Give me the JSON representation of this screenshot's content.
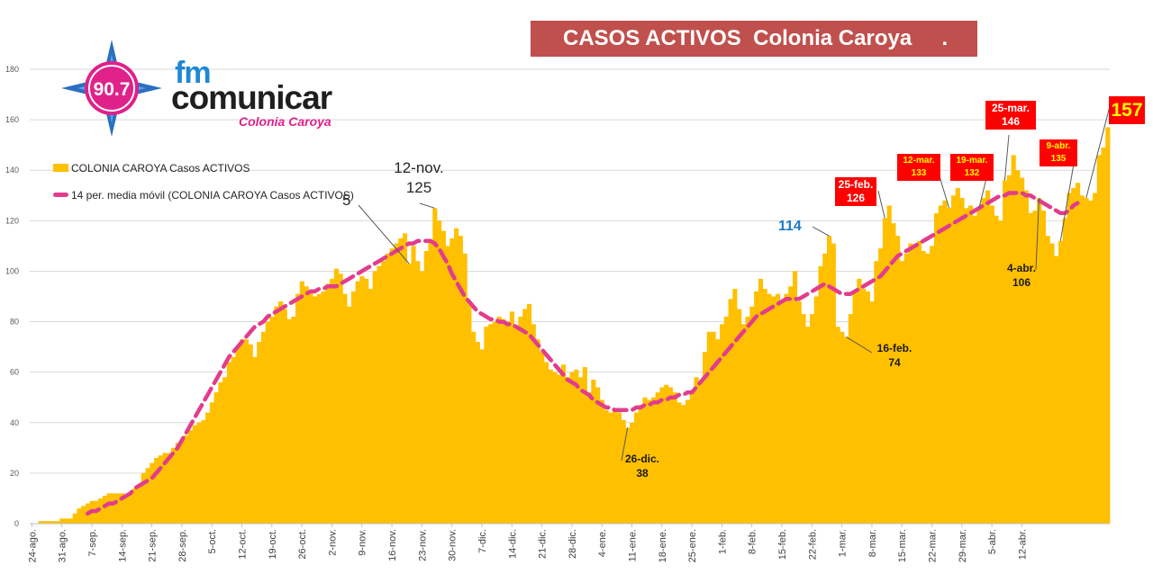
{
  "title": "CASOS ACTIVOS  Colonia Caroya     .",
  "logo": {
    "frequency": "90.7",
    "brand_top": "fm",
    "brand_main": "comunicar",
    "brand_city": "Colonia Caroya"
  },
  "colors": {
    "bars": "#ffc000",
    "moving_average": "#e23c8c",
    "title_bg": "#c0504d",
    "highlight": "#ff0000",
    "highlight_text": "#ffff00",
    "accent_blue": "#1e7bc9"
  },
  "chart_data": {
    "type": "bar",
    "ylim": [
      0,
      180
    ],
    "yticks": [
      0,
      20,
      40,
      60,
      80,
      100,
      120,
      140,
      160,
      180
    ],
    "grid": true,
    "legend_position": "top-left",
    "x_tick_labels": [
      "24-ago.",
      "31-ago.",
      "7-sep.",
      "14-sep.",
      "21-sep.",
      "28-sep.",
      "5-oct.",
      "12-oct.",
      "19-oct.",
      "26-oct.",
      "2-nov.",
      "9-nov.",
      "16-nov.",
      "23-nov.",
      "30-nov.",
      "7-dic.",
      "14-dic.",
      "21-dic.",
      "28-dic.",
      "4-ene.",
      "11-ene.",
      "18-ene.",
      "25-ene.",
      "1-feb.",
      "8-feb.",
      "15-feb.",
      "22-feb.",
      "1-mar.",
      "8-mar.",
      "15-mar.",
      "22-mar.",
      "29-mar.",
      "5-abr.",
      "12-abr."
    ],
    "first_day": "24-ago.",
    "series": [
      {
        "name": "COLONIA CAROYA Casos ACTIVOS",
        "type": "bar",
        "values": [
          0,
          0,
          1,
          1,
          1,
          1,
          1,
          2,
          2,
          2,
          4,
          6,
          7,
          8,
          9,
          9,
          10,
          11,
          12,
          12,
          12,
          12,
          11,
          12,
          14,
          15,
          20,
          22,
          24,
          26,
          27,
          28,
          28,
          30,
          32,
          33,
          35,
          37,
          39,
          40,
          41,
          44,
          48,
          52,
          56,
          58,
          64,
          66,
          70,
          73,
          73,
          71,
          66,
          72,
          76,
          80,
          82,
          86,
          88,
          85,
          81,
          82,
          91,
          96,
          94,
          92,
          90,
          91,
          92,
          95,
          97,
          101,
          99,
          91,
          86,
          92,
          96,
          98,
          97,
          93,
          100,
          102,
          104,
          107,
          109,
          111,
          113,
          115,
          103,
          110,
          104,
          100,
          108,
          112,
          125,
          120,
          116,
          110,
          113,
          117,
          114,
          107,
          88,
          76,
          72,
          69,
          78,
          79,
          80,
          82,
          81,
          80,
          84,
          78,
          82,
          85,
          87,
          79,
          73,
          68,
          64,
          61,
          60,
          59,
          63,
          58,
          60,
          61,
          58,
          62,
          52,
          57,
          54,
          49,
          45,
          44,
          45,
          44,
          41,
          38,
          40,
          44,
          47,
          50,
          49,
          50,
          52,
          54,
          55,
          54,
          52,
          48,
          47,
          49,
          52,
          58,
          56,
          68,
          76,
          76,
          73,
          79,
          82,
          89,
          93,
          85,
          79,
          82,
          86,
          92,
          97,
          93,
          91,
          90,
          91,
          88,
          91,
          94,
          100,
          88,
          83,
          78,
          83,
          90,
          102,
          107,
          114,
          111,
          78,
          76,
          74,
          83,
          92,
          97,
          93,
          92,
          88,
          104,
          109,
          121,
          126,
          119,
          114,
          104,
          107,
          111,
          110,
          112,
          108,
          107,
          110,
          123,
          126,
          128,
          125,
          130,
          133,
          129,
          125,
          126,
          122,
          125,
          129,
          132,
          126,
          122,
          120,
          136,
          138,
          146,
          140,
          137,
          132,
          123,
          124,
          129,
          124,
          114,
          111,
          106,
          112,
          121,
          131,
          133,
          135,
          130,
          129,
          128,
          131,
          146,
          149,
          157
        ]
      },
      {
        "name": "14 per. media móvil (COLONIA CAROYA Casos ACTIVOS)",
        "type": "line",
        "dash": true,
        "values": [
          null,
          null,
          null,
          null,
          null,
          null,
          null,
          null,
          null,
          null,
          null,
          null,
          null,
          4,
          5,
          5,
          6,
          7,
          8,
          8,
          9,
          10,
          11,
          12,
          14,
          15,
          16,
          17,
          18,
          20,
          22,
          24,
          26,
          28,
          30,
          33,
          36,
          39,
          42,
          45,
          48,
          51,
          54,
          57,
          60,
          63,
          66,
          68,
          70,
          72,
          74,
          76,
          78,
          79,
          80,
          82,
          83,
          84,
          85,
          86,
          87,
          88,
          89,
          90,
          91,
          92,
          92,
          93,
          93,
          94,
          94,
          94,
          95,
          96,
          97,
          98,
          99,
          100,
          101,
          102,
          103,
          104,
          105,
          106,
          107,
          108,
          109,
          110,
          111,
          111,
          112,
          112,
          112,
          112,
          111,
          109,
          106,
          103,
          99,
          96,
          93,
          90,
          88,
          86,
          84,
          83,
          82,
          81,
          81,
          80,
          80,
          79,
          79,
          78,
          77,
          76,
          75,
          73,
          71,
          69,
          67,
          65,
          63,
          61,
          59,
          57,
          56,
          55,
          53,
          52,
          51,
          49,
          48,
          47,
          46,
          46,
          45,
          45,
          45,
          45,
          45,
          46,
          46,
          47,
          47,
          48,
          48,
          49,
          49,
          50,
          50,
          51,
          51,
          52,
          52,
          54,
          56,
          58,
          60,
          62,
          64,
          66,
          68,
          70,
          72,
          74,
          76,
          78,
          80,
          82,
          83,
          84,
          85,
          86,
          87,
          88,
          89,
          89,
          89,
          89,
          90,
          91,
          92,
          93,
          94,
          95,
          94,
          93,
          92,
          91,
          91,
          91,
          92,
          93,
          94,
          95,
          96,
          97,
          98,
          100,
          102,
          104,
          106,
          107,
          108,
          109,
          110,
          111,
          112,
          113,
          114,
          115,
          116,
          117,
          118,
          119,
          120,
          121,
          122,
          123,
          124,
          125,
          126,
          127,
          128,
          129,
          130,
          130,
          131,
          131,
          131,
          131,
          130,
          130,
          129,
          128,
          127,
          126,
          125,
          124,
          123,
          123,
          124,
          126,
          127
        ]
      }
    ],
    "annotations": [
      {
        "text": "5",
        "x_index": 88
      },
      {
        "text": "12-nov.",
        "value": "125",
        "x_index": 94
      },
      {
        "text": "26-dic.",
        "value": "38",
        "x_index": 139
      },
      {
        "text": "114",
        "x_index": 186
      },
      {
        "text": "16-feb.",
        "value": "74",
        "x_index": 190
      },
      {
        "text": "25-feb.",
        "value": "126",
        "x_index": 199
      },
      {
        "text": "12-mar.",
        "value": "133",
        "x_index": 214
      },
      {
        "text": "19-mar.",
        "value": "132",
        "x_index": 221
      },
      {
        "text": "25-mar.",
        "value": "146",
        "x_index": 227
      },
      {
        "text": "4-abr.",
        "value": "106",
        "x_index": 235
      },
      {
        "text": "9-abr.",
        "value": "135",
        "x_index": 240
      },
      {
        "text": "157",
        "x_index": 246
      }
    ]
  }
}
